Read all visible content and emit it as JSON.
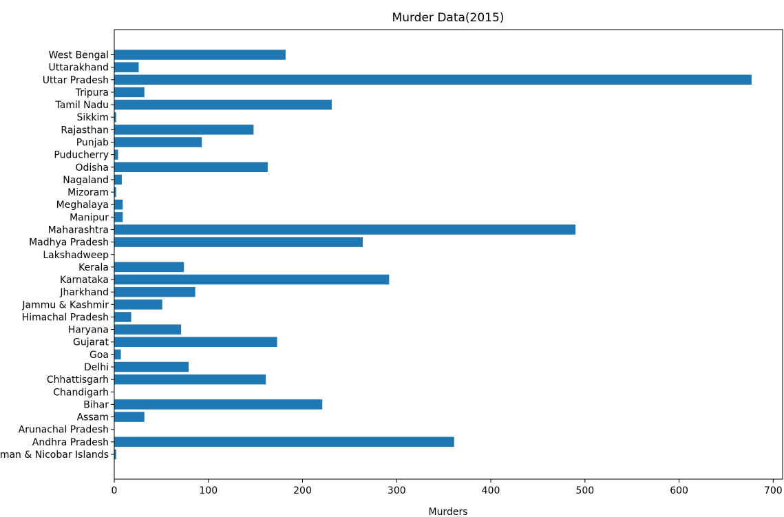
{
  "chart_data": {
    "type": "bar",
    "orientation": "horizontal",
    "title": "Murder Data(2015)",
    "xlabel": "Murders",
    "ylabel": "",
    "xlim": [
      0,
      710
    ],
    "xticks": [
      0,
      100,
      200,
      300,
      400,
      500,
      600,
      700
    ],
    "grid": false,
    "bar_color": "#1f77b4",
    "categories": [
      "Andaman & Nicobar Islands",
      "Andhra Pradesh",
      "Arunachal Pradesh",
      "Assam",
      "Bihar",
      "Chandigarh",
      "Chhattisgarh",
      "Delhi",
      "Goa",
      "Gujarat",
      "Haryana",
      "Himachal Pradesh",
      "Jammu & Kashmir",
      "Jharkhand",
      "Karnataka",
      "Kerala",
      "Lakshadweep",
      "Madhya Pradesh",
      "Maharashtra",
      "Manipur",
      "Meghalaya",
      "Mizoram",
      "Nagaland",
      "Odisha",
      "Puducherry",
      "Punjab",
      "Rajasthan",
      "Sikkim",
      "Tamil Nadu",
      "Tripura",
      "Uttar Pradesh",
      "Uttarakhand",
      "West Bengal"
    ],
    "values": [
      2,
      361,
      0,
      32,
      221,
      0,
      161,
      79,
      7,
      173,
      71,
      18,
      51,
      86,
      292,
      74,
      0,
      264,
      490,
      9,
      9,
      2,
      8,
      163,
      4,
      93,
      148,
      2,
      231,
      32,
      677,
      26,
      182
    ]
  }
}
